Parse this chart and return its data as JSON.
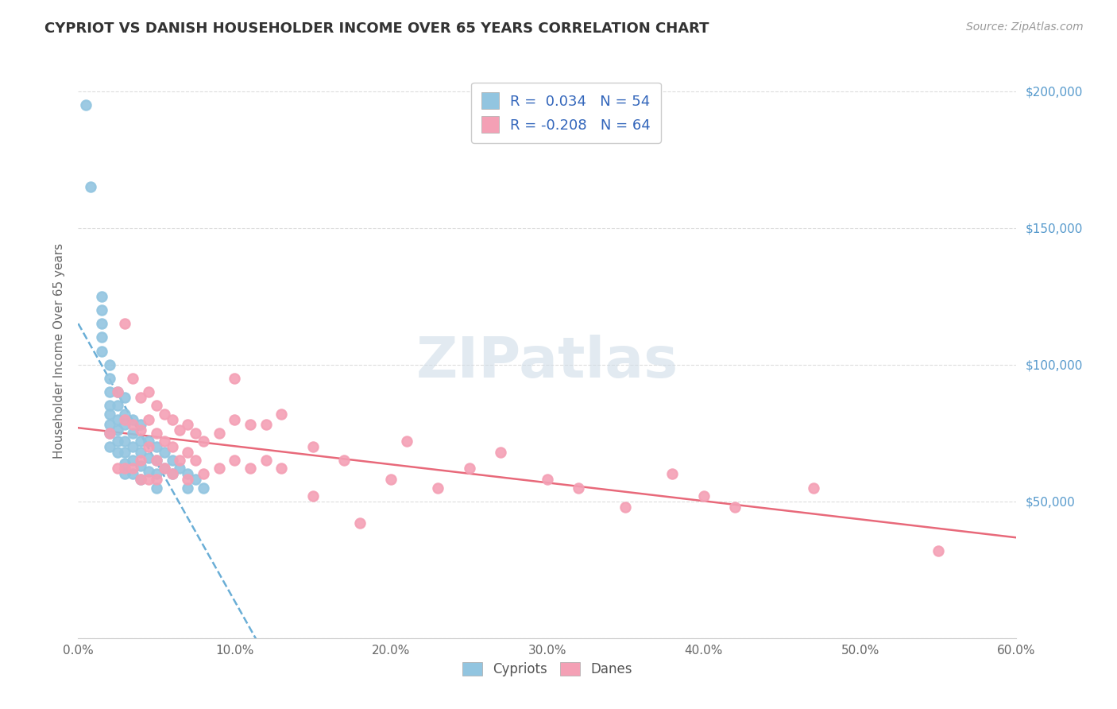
{
  "title": "CYPRIOT VS DANISH HOUSEHOLDER INCOME OVER 65 YEARS CORRELATION CHART",
  "source": "Source: ZipAtlas.com",
  "ylabel": "Householder Income Over 65 years",
  "xlim": [
    0.0,
    0.6
  ],
  "ylim": [
    0,
    210000
  ],
  "ytick_vals": [
    0,
    50000,
    100000,
    150000,
    200000
  ],
  "ytick_labels": [
    "",
    "$50,000",
    "$100,000",
    "$150,000",
    "$200,000"
  ],
  "xtick_vals": [
    0.0,
    0.1,
    0.2,
    0.3,
    0.4,
    0.5,
    0.6
  ],
  "xtick_labels": [
    "0.0%",
    "10.0%",
    "20.0%",
    "30.0%",
    "40.0%",
    "50.0%",
    "60.0%"
  ],
  "legend_label1": "Cypriots",
  "legend_label2": "Danes",
  "R1": 0.034,
  "N1": 54,
  "R2": -0.208,
  "N2": 64,
  "color_cypriot": "#92c5e0",
  "color_dane": "#f4a0b5",
  "trendline_cypriot": "#6aaed6",
  "trendline_dane": "#e8697a",
  "background_color": "#ffffff",
  "cypriot_x": [
    0.005,
    0.008,
    0.015,
    0.015,
    0.015,
    0.015,
    0.015,
    0.02,
    0.02,
    0.02,
    0.02,
    0.02,
    0.02,
    0.02,
    0.02,
    0.025,
    0.025,
    0.025,
    0.025,
    0.025,
    0.025,
    0.03,
    0.03,
    0.03,
    0.03,
    0.03,
    0.03,
    0.03,
    0.035,
    0.035,
    0.035,
    0.035,
    0.035,
    0.04,
    0.04,
    0.04,
    0.04,
    0.04,
    0.045,
    0.045,
    0.045,
    0.05,
    0.05,
    0.05,
    0.05,
    0.055,
    0.055,
    0.06,
    0.06,
    0.065,
    0.07,
    0.07,
    0.075,
    0.08
  ],
  "cypriot_y": [
    195000,
    165000,
    125000,
    120000,
    115000,
    110000,
    105000,
    100000,
    95000,
    90000,
    85000,
    82000,
    78000,
    75000,
    70000,
    90000,
    85000,
    80000,
    76000,
    72000,
    68000,
    88000,
    82000,
    78000,
    72000,
    68000,
    64000,
    60000,
    80000,
    75000,
    70000,
    65000,
    60000,
    78000,
    72000,
    68000,
    63000,
    58000,
    72000,
    66000,
    61000,
    70000,
    65000,
    60000,
    55000,
    68000,
    62000,
    65000,
    60000,
    62000,
    60000,
    55000,
    58000,
    55000
  ],
  "dane_x": [
    0.02,
    0.025,
    0.025,
    0.03,
    0.03,
    0.03,
    0.035,
    0.035,
    0.035,
    0.04,
    0.04,
    0.04,
    0.04,
    0.045,
    0.045,
    0.045,
    0.045,
    0.05,
    0.05,
    0.05,
    0.05,
    0.055,
    0.055,
    0.055,
    0.06,
    0.06,
    0.06,
    0.065,
    0.065,
    0.07,
    0.07,
    0.07,
    0.075,
    0.075,
    0.08,
    0.08,
    0.09,
    0.09,
    0.1,
    0.1,
    0.1,
    0.11,
    0.11,
    0.12,
    0.12,
    0.13,
    0.13,
    0.15,
    0.15,
    0.17,
    0.18,
    0.2,
    0.21,
    0.23,
    0.25,
    0.27,
    0.3,
    0.32,
    0.35,
    0.38,
    0.4,
    0.42,
    0.47,
    0.55
  ],
  "dane_y": [
    75000,
    90000,
    62000,
    115000,
    80000,
    62000,
    95000,
    78000,
    62000,
    88000,
    76000,
    65000,
    58000,
    90000,
    80000,
    70000,
    58000,
    85000,
    75000,
    65000,
    58000,
    82000,
    72000,
    62000,
    80000,
    70000,
    60000,
    76000,
    65000,
    78000,
    68000,
    58000,
    75000,
    65000,
    72000,
    60000,
    75000,
    62000,
    95000,
    80000,
    65000,
    78000,
    62000,
    78000,
    65000,
    82000,
    62000,
    70000,
    52000,
    65000,
    42000,
    58000,
    72000,
    55000,
    62000,
    68000,
    58000,
    55000,
    48000,
    60000,
    52000,
    48000,
    55000,
    32000
  ]
}
